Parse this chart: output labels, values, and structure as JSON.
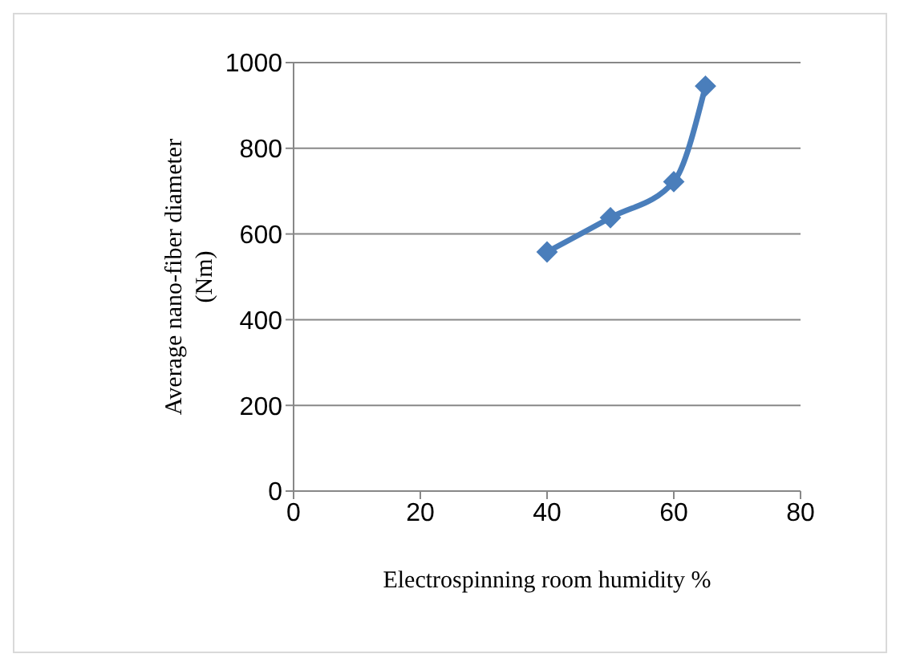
{
  "chart_data": {
    "type": "line",
    "xlabel": "Electrospinning room humidity %",
    "ylabel": "Average nano-fiber diameter (Nm)",
    "x": [
      40,
      50,
      60,
      65
    ],
    "series": [
      {
        "color": "#4a7ebb",
        "values": [
          558,
          638,
          722,
          945
        ]
      }
    ],
    "xlim": [
      0,
      80
    ],
    "xticks": [
      0,
      20,
      40,
      60,
      80
    ],
    "ylim": [
      0,
      1000
    ],
    "yticks": [
      0,
      200,
      400,
      600,
      800,
      1000
    ],
    "grid": "y",
    "legend": false,
    "marker": "diamond",
    "line_style": "solid"
  }
}
